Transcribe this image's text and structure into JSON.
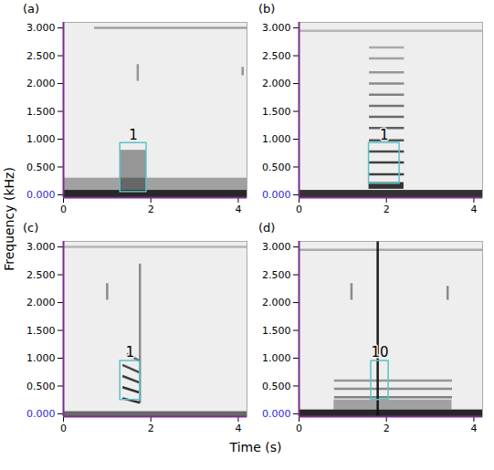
{
  "chart_data": {
    "type": "spectrogram",
    "x_label": "Time (s)",
    "y_label": "Frequency (kHz)",
    "xlim": [
      0,
      4.2
    ],
    "xticks": [
      0,
      2,
      4
    ],
    "ylim": [
      -0.05,
      3.1
    ],
    "yticks": [
      {
        "value": 0,
        "label": "0.000"
      },
      {
        "value": 0.5,
        "label": "0.500"
      },
      {
        "value": 1,
        "label": "1.000"
      },
      {
        "value": 1.5,
        "label": "1.500"
      },
      {
        "value": 2,
        "label": "2.000"
      },
      {
        "value": 2.5,
        "label": "2.500"
      },
      {
        "value": 3,
        "label": "3.000"
      }
    ],
    "panels": [
      {
        "title": "(a)",
        "regions": [
          {
            "x1": 0,
            "x2": 4.2,
            "y1": -0.05,
            "y2": 0.08,
            "intensity": 0.9
          },
          {
            "x1": 0,
            "x2": 4.2,
            "y1": 0.08,
            "y2": 0.3,
            "intensity": 0.35
          },
          {
            "x1": 1.3,
            "x2": 1.9,
            "y1": 0.08,
            "y2": 0.8,
            "intensity": 0.4
          }
        ],
        "streaks": [
          {
            "x1": 0.7,
            "y1": 3.0,
            "x2": 4.2,
            "y2": 3.0,
            "intensity": 0.35
          },
          {
            "x1": 1.7,
            "y1": 2.05,
            "x2": 1.7,
            "y2": 2.35,
            "intensity": 0.4
          },
          {
            "x1": 4.1,
            "y1": 2.15,
            "x2": 4.1,
            "y2": 2.3,
            "intensity": 0.4
          }
        ],
        "annotations": [
          {
            "x1": 1.3,
            "x2": 1.9,
            "y1": 0.05,
            "y2": 0.93,
            "label": "1"
          }
        ]
      },
      {
        "title": "(b)",
        "regions": [
          {
            "x1": 0,
            "x2": 4.2,
            "y1": -0.05,
            "y2": 0.08,
            "intensity": 0.85
          },
          {
            "x1": 1.6,
            "x2": 2.4,
            "y1": 0.1,
            "y2": 0.22,
            "intensity": 0.85
          }
        ],
        "streaks": [
          {
            "x1": 1.6,
            "y1": 0.37,
            "x2": 2.4,
            "y2": 0.37,
            "intensity": 0.8
          },
          {
            "x1": 1.6,
            "y1": 0.58,
            "x2": 2.4,
            "y2": 0.58,
            "intensity": 0.8
          },
          {
            "x1": 1.6,
            "y1": 0.78,
            "x2": 2.4,
            "y2": 0.78,
            "intensity": 0.75
          },
          {
            "x1": 1.6,
            "y1": 0.98,
            "x2": 2.4,
            "y2": 0.98,
            "intensity": 0.7
          },
          {
            "x1": 1.6,
            "y1": 1.2,
            "x2": 2.4,
            "y2": 1.2,
            "intensity": 0.65
          },
          {
            "x1": 1.6,
            "y1": 1.4,
            "x2": 2.4,
            "y2": 1.4,
            "intensity": 0.6
          },
          {
            "x1": 1.6,
            "y1": 1.6,
            "x2": 2.4,
            "y2": 1.6,
            "intensity": 0.55
          },
          {
            "x1": 1.6,
            "y1": 1.8,
            "x2": 2.4,
            "y2": 1.8,
            "intensity": 0.5
          },
          {
            "x1": 1.6,
            "y1": 2.0,
            "x2": 2.4,
            "y2": 2.0,
            "intensity": 0.45
          },
          {
            "x1": 1.6,
            "y1": 2.2,
            "x2": 2.4,
            "y2": 2.2,
            "intensity": 0.4
          },
          {
            "x1": 1.6,
            "y1": 2.45,
            "x2": 2.4,
            "y2": 2.45,
            "intensity": 0.35
          },
          {
            "x1": 1.6,
            "y1": 2.65,
            "x2": 2.4,
            "y2": 2.65,
            "intensity": 0.3
          },
          {
            "x1": 0,
            "y1": 2.95,
            "x2": 4.2,
            "y2": 2.95,
            "intensity": 0.25
          }
        ],
        "annotations": [
          {
            "x1": 1.6,
            "x2": 2.3,
            "y1": 0.2,
            "y2": 0.93,
            "label": "1"
          }
        ]
      },
      {
        "title": "(c)",
        "regions": [
          {
            "x1": 0,
            "x2": 4.2,
            "y1": -0.05,
            "y2": 0.04,
            "intensity": 0.6
          }
        ],
        "streaks": [
          {
            "x1": 1.35,
            "y1": 0.28,
            "x2": 1.75,
            "y2": 0.2,
            "intensity": 0.85
          },
          {
            "x1": 1.35,
            "y1": 0.48,
            "x2": 1.75,
            "y2": 0.38,
            "intensity": 0.85
          },
          {
            "x1": 1.35,
            "y1": 0.68,
            "x2": 1.75,
            "y2": 0.56,
            "intensity": 0.8
          },
          {
            "x1": 1.35,
            "y1": 0.88,
            "x2": 1.75,
            "y2": 0.74,
            "intensity": 0.75
          },
          {
            "x1": 1.45,
            "y1": 1.08,
            "x2": 1.75,
            "y2": 0.95,
            "intensity": 0.6
          },
          {
            "x1": 1.75,
            "y1": 0.2,
            "x2": 1.75,
            "y2": 2.7,
            "intensity": 0.45
          },
          {
            "x1": 1.0,
            "y1": 2.05,
            "x2": 1.0,
            "y2": 2.35,
            "intensity": 0.45
          },
          {
            "x1": 0,
            "y1": 3.0,
            "x2": 4.2,
            "y2": 3.0,
            "intensity": 0.25
          }
        ],
        "annotations": [
          {
            "x1": 1.3,
            "x2": 1.75,
            "y1": 0.25,
            "y2": 0.95,
            "label": "1"
          }
        ]
      },
      {
        "title": "(d)",
        "regions": [
          {
            "x1": 0,
            "x2": 4.2,
            "y1": -0.05,
            "y2": 0.07,
            "intensity": 0.9
          },
          {
            "x1": 0.8,
            "x2": 3.5,
            "y1": 0.07,
            "y2": 0.25,
            "intensity": 0.35
          }
        ],
        "streaks": [
          {
            "x1": 1.8,
            "y1": -0.05,
            "x2": 1.8,
            "y2": 3.1,
            "intensity": 0.95
          },
          {
            "x1": 0.8,
            "y1": 0.3,
            "x2": 3.5,
            "y2": 0.3,
            "intensity": 0.5
          },
          {
            "x1": 0.8,
            "y1": 0.45,
            "x2": 3.5,
            "y2": 0.45,
            "intensity": 0.45
          },
          {
            "x1": 0.8,
            "y1": 0.6,
            "x2": 3.5,
            "y2": 0.6,
            "intensity": 0.4
          },
          {
            "x1": 1.2,
            "y1": 2.05,
            "x2": 1.2,
            "y2": 2.35,
            "intensity": 0.45
          },
          {
            "x1": 3.4,
            "y1": 2.05,
            "x2": 3.4,
            "y2": 2.3,
            "intensity": 0.45
          },
          {
            "x1": 0,
            "y1": 2.95,
            "x2": 4.2,
            "y2": 2.95,
            "intensity": 0.3
          }
        ],
        "annotations": [
          {
            "x1": 1.65,
            "x2": 2.05,
            "y1": 0.25,
            "y2": 0.95,
            "label": "10"
          }
        ]
      }
    ]
  }
}
